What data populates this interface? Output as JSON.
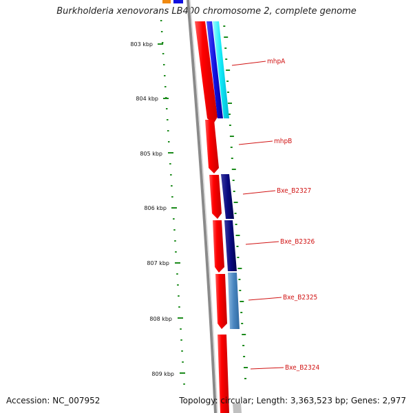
{
  "title": "Burkholderia xenovorans LB400 chromosome 2, complete genome",
  "footer": {
    "accession": "Accession: NC_007952",
    "summary": "Topology: circular; Length: 3,363,523 bp; Genes: 2,977"
  },
  "colors": {
    "backbone": "#8a8a8a",
    "backbone_highlight": "#d0d0d0",
    "gene_red": "#ff0000",
    "gene_red_dark": "#c80000",
    "gene_label": "#d01010",
    "tick_green": "#1a8a1a",
    "blue": "#1010e0",
    "cyan": "#10e8f8",
    "navy": "#0a0a80",
    "steelblue": "#4a86c0",
    "orange": "#f08a10"
  },
  "ruler": {
    "ticks": [
      {
        "label": "803 kbp",
        "kbp": 803
      },
      {
        "label": "804 kbp",
        "kbp": 804
      },
      {
        "label": "805 kbp",
        "kbp": 805
      },
      {
        "label": "806 kbp",
        "kbp": 806
      },
      {
        "label": "807 kbp",
        "kbp": 807
      },
      {
        "label": "808 kbp",
        "kbp": 808
      },
      {
        "label": "809 kbp",
        "kbp": 809
      }
    ]
  },
  "genes": [
    {
      "label": "mhpA"
    },
    {
      "label": "mhpB"
    },
    {
      "label": "Bxe_B2327"
    },
    {
      "label": "Bxe_B2326"
    },
    {
      "label": "Bxe_B2325"
    },
    {
      "label": "Bxe_B2324"
    }
  ]
}
